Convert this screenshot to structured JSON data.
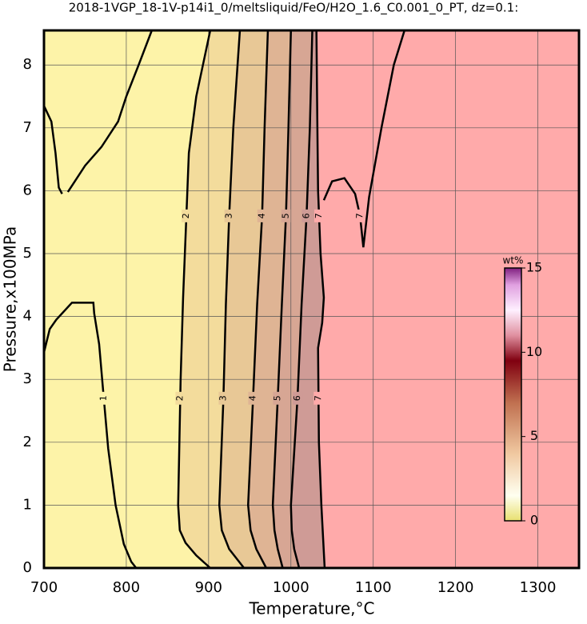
{
  "chart_data": {
    "type": "contour",
    "title": "2018-1VGP_18-1V-p14i1_0/meltsliquid/FeO/H2O_1.6_C0.001_0_PT, dz=0.1:",
    "x_label": "Temperature,°C",
    "y_label": "Pressure,x100MPa",
    "xlim": [
      700,
      1350
    ],
    "ylim": [
      0,
      8.55
    ],
    "xticks": [
      700,
      800,
      900,
      1000,
      1100,
      1200,
      1300
    ],
    "yticks": [
      0,
      1,
      2,
      3,
      4,
      5,
      6,
      7,
      8
    ],
    "grid": true,
    "background": "#fdf3a8",
    "contours": [
      {
        "level": 1,
        "lines": [
          {
            "x": [
              700,
              709,
              714,
              718,
              722
            ],
            "y": [
              7.35,
              7.1,
              6.6,
              6.05,
              5.95
            ]
          },
          {
            "x": [
              831,
              815,
              800,
              790,
              770,
              750,
              735,
              729
            ],
            "y": [
              8.55,
              8.0,
              7.5,
              7.1,
              6.7,
              6.4,
              6.1,
              5.98
            ]
          },
          {
            "x": [
              700,
              707,
              715,
              734,
              760,
              761,
              767,
              772,
              778,
              787,
              797,
              806,
              812
            ],
            "y": [
              3.43,
              3.8,
              3.95,
              4.22,
              4.22,
              4.05,
              3.56,
              2.8,
              1.9,
              1.0,
              0.38,
              0.1,
              0
            ]
          }
        ]
      },
      {
        "level": 2,
        "fill": "#f3dc9c",
        "lines": [
          {
            "x": [
              902,
              885,
              876,
              873,
              869,
              866,
              863,
              865,
              872,
              885,
              902
            ],
            "y": [
              8.55,
              7.5,
              6.6,
              5.6,
              4.3,
              3.0,
              1.0,
              0.6,
              0.4,
              0.2,
              0
            ]
          }
        ]
      },
      {
        "level": 3,
        "fill": "#e8c896",
        "lines": [
          {
            "x": [
              938,
              930,
              925,
              921,
              918,
              913,
              916,
              925,
              943
            ],
            "y": [
              8.55,
              7.0,
              5.6,
              4.2,
              2.7,
              1.0,
              0.6,
              0.3,
              0
            ]
          }
        ]
      },
      {
        "level": 4,
        "fill": "#dfb494",
        "lines": [
          {
            "x": [
              972,
              968,
              965,
              959,
              954,
              948,
              951,
              958,
              970
            ],
            "y": [
              8.55,
              7.0,
              5.6,
              4.2,
              2.7,
              1.0,
              0.6,
              0.3,
              0
            ]
          }
        ]
      },
      {
        "level": 5,
        "fill": "#d7a694",
        "lines": [
          {
            "x": [
              1000,
              997,
              994,
              989,
              984,
              978,
              980,
              984,
              990
            ],
            "y": [
              8.55,
              7.0,
              5.6,
              4.2,
              2.7,
              1.0,
              0.6,
              0.3,
              0
            ]
          }
        ]
      },
      {
        "level": 6,
        "fill": "#cf9b96",
        "lines": [
          {
            "x": [
              1026,
              1023,
              1019,
              1013,
              1008,
              1000,
              1001,
              1004,
              1010
            ],
            "y": [
              8.55,
              7.0,
              5.6,
              4.2,
              2.7,
              1.0,
              0.6,
              0.3,
              0
            ]
          }
        ]
      },
      {
        "level": 7,
        "fill": "#ffaaaa",
        "lines": [
          {
            "x": [
              1031,
              1032,
              1033,
              1036,
              1040,
              1038,
              1033,
              1034,
              1037,
              1041
            ],
            "y": [
              8.55,
              7.2,
              6.0,
              5.0,
              4.3,
              3.9,
              3.5,
              2.0,
              1.0,
              0
            ]
          },
          {
            "x": [
              1040,
              1050,
              1065,
              1078,
              1084,
              1088,
              1095,
              1110,
              1125,
              1138
            ],
            "y": [
              5.85,
              6.15,
              6.2,
              5.95,
              5.6,
              5.1,
              5.9,
              7.0,
              8.0,
              8.55
            ]
          }
        ]
      }
    ],
    "colorbar": {
      "label": "wt%",
      "lim": [
        0,
        15
      ],
      "ticks": [
        0,
        5,
        10,
        15
      ],
      "stops": [
        [
          0,
          "#e8e070"
        ],
        [
          1.5,
          "#fffff0"
        ],
        [
          4,
          "#f0c8a0"
        ],
        [
          7,
          "#c07050"
        ],
        [
          9.5,
          "#800010"
        ],
        [
          11,
          "#e090a0"
        ],
        [
          12.5,
          "#fff0ff"
        ],
        [
          14,
          "#e0a0e0"
        ],
        [
          15,
          "#802080"
        ]
      ]
    }
  }
}
